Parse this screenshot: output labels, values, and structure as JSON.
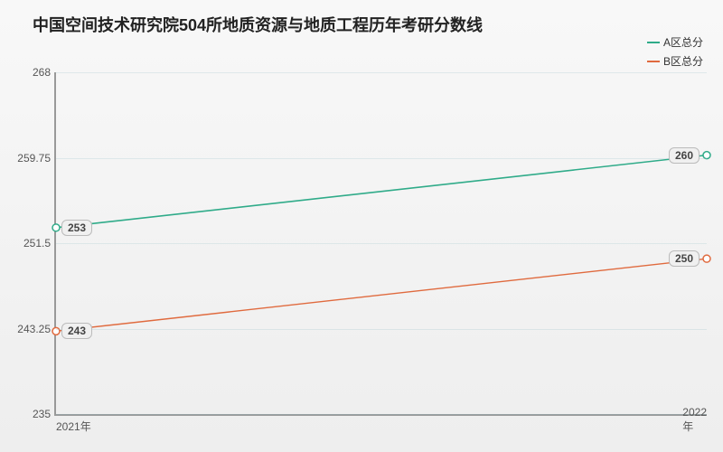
{
  "chart": {
    "type": "line",
    "title": "中国空间技术研究院504所地质资源与地质工程历年考研分数线",
    "title_fontsize": 18,
    "title_fontweight": "bold",
    "title_color": "#222222",
    "background_gradient": [
      "#f8f8f8",
      "#eeeeee"
    ],
    "plot_border_color": "#999999",
    "grid_color": "rgba(150,190,200,0.25)",
    "label_fontsize": 12,
    "label_color": "#555555",
    "point_label_bg": "#f0f0f0",
    "point_label_border": "#bbbbbb",
    "xaxis": {
      "categories": [
        "2021年",
        "2022年"
      ]
    },
    "yaxis": {
      "min": 235,
      "max": 268,
      "ticks": [
        235,
        243.25,
        251.5,
        259.75,
        268
      ]
    },
    "legend": {
      "position": "top-right",
      "items": [
        {
          "label": "A区总分",
          "color": "#2fab89"
        },
        {
          "label": "B区总分",
          "color": "#e06a3e"
        }
      ]
    },
    "series": [
      {
        "name": "A区总分",
        "color": "#2fab89",
        "line_width": 1.6,
        "marker": "circle",
        "marker_size": 4,
        "marker_fill": "#ffffff",
        "data": [
          253,
          260
        ]
      },
      {
        "name": "B区总分",
        "color": "#e06a3e",
        "line_width": 1.4,
        "marker": "circle",
        "marker_size": 4,
        "marker_fill": "#ffffff",
        "data": [
          243,
          250
        ]
      }
    ]
  }
}
